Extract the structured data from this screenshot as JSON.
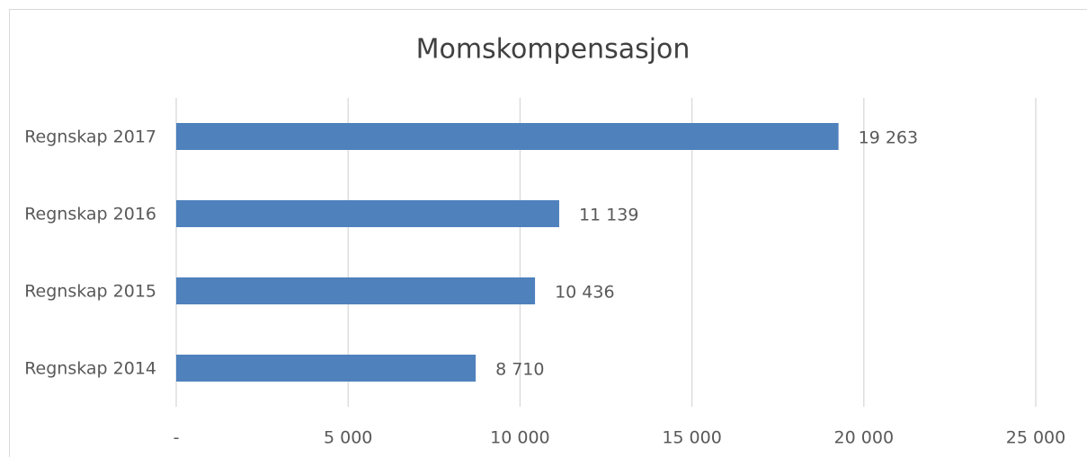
{
  "chart_data": {
    "type": "bar",
    "orientation": "horizontal",
    "title": "Momskompensasjon",
    "categories": [
      "Regnskap 2017",
      "Regnskap 2016",
      "Regnskap 2015",
      "Regnskap 2014"
    ],
    "values": [
      19263,
      11139,
      10436,
      8710
    ],
    "value_labels": [
      "19 263",
      "11 139",
      "10 436",
      "8 710"
    ],
    "color": "#4f81bd",
    "xlim": [
      0,
      25000
    ],
    "xticks": [
      {
        "value": 0,
        "label": "-"
      },
      {
        "value": 5000,
        "label": "5 000"
      },
      {
        "value": 10000,
        "label": "10 000"
      },
      {
        "value": 15000,
        "label": "15 000"
      },
      {
        "value": 20000,
        "label": "20 000"
      },
      {
        "value": 25000,
        "label": "25 000"
      }
    ],
    "grid": true
  }
}
